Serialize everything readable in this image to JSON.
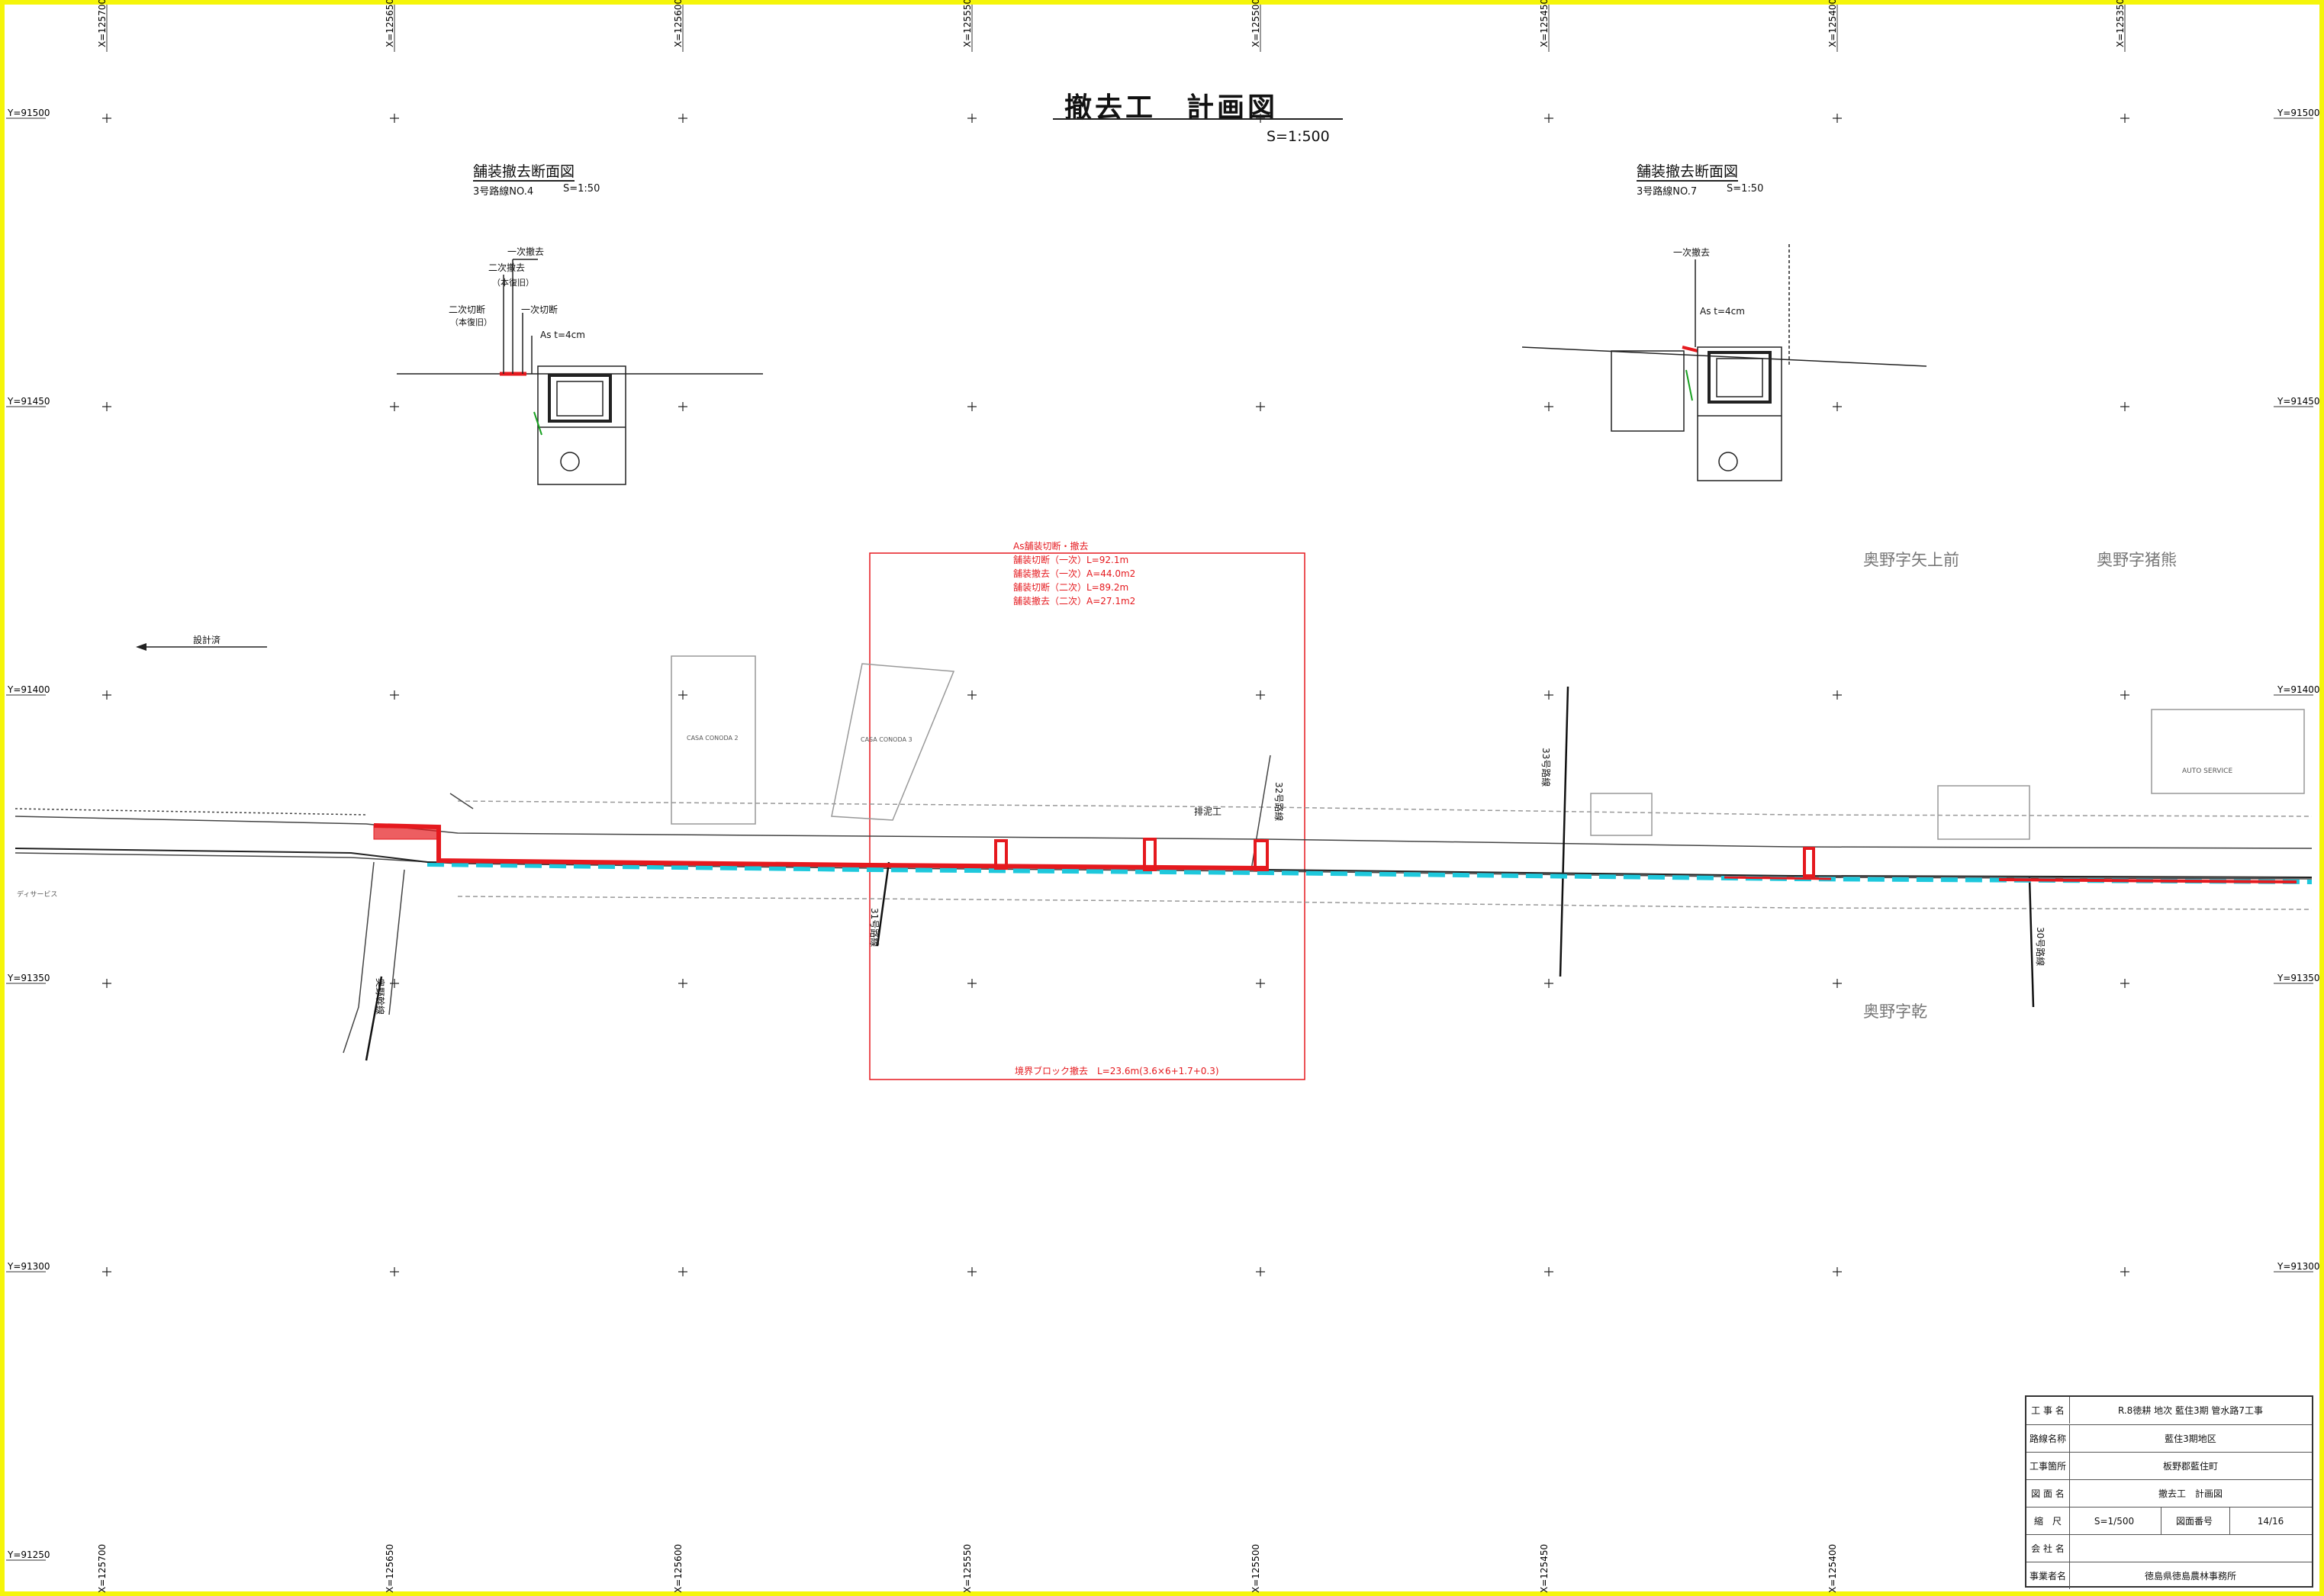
{
  "drawing": {
    "title": "撤去工　計画図",
    "scale": "S=1:500"
  },
  "grid": {
    "x_labels": [
      "X=125700",
      "X=125650",
      "X=125600",
      "X=125550",
      "X=125500",
      "X=125450",
      "X=125400",
      "X=125350"
    ],
    "x_labels_bottom": [
      "X=125700",
      "X=125650",
      "X=125600",
      "X=125550",
      "X=125500",
      "X=125450",
      "X=125400"
    ],
    "y_labels": [
      "Y=91500",
      "Y=91450",
      "Y=91400",
      "Y=91350",
      "Y=91300",
      "Y=91250"
    ],
    "y_labels_right": [
      "Y=91500",
      "Y=91450",
      "Y=91400",
      "Y=91350",
      "Y=91300"
    ]
  },
  "sections": [
    {
      "title": "舗装撤去断面図",
      "sub_left": "3号路線NO.4",
      "sub_right": "S=1:50",
      "labels": [
        "一次撤去",
        "二次撤去",
        "（本復旧）",
        "二次切断",
        "（本復旧）",
        "一次切断",
        "As t=4cm"
      ]
    },
    {
      "title": "舗装撤去断面図",
      "sub_left": "3号路線NO.7",
      "sub_right": "S=1:50",
      "labels": [
        "一次撤去",
        "As t=4cm"
      ]
    }
  ],
  "callout": {
    "lines": [
      "As舗装切断・撤去",
      "舗装切断（一次）L=92.1m",
      "舗装撤去（一次）A=44.0m2",
      "舗装切断（二次）L=89.2m",
      "舗装撤去（二次）A=27.1m2"
    ],
    "bottom_note": "境界ブロック撤去　L=23.6m(3.6×6+1.7+0.3)"
  },
  "plan_labels": {
    "design_done": "設計済",
    "existing_work": "排泥工",
    "route_30": "30号路線",
    "route_32": "32号路線",
    "route_33": "33号路線",
    "route_31": "31号路線",
    "route_main": "奥野幹線",
    "casa_1": "CASA CONODA 2",
    "casa_2": "CASA CONODA 3",
    "auto": "AUTO SERVICE",
    "service": "ディサービス"
  },
  "places": [
    "奥野字矢上前",
    "奥野字猪熊",
    "奥野字乾"
  ],
  "title_block": {
    "rows": [
      {
        "label": "工 事 名",
        "value": "R.8徳耕 地次 藍住3期 管水路7工事"
      },
      {
        "label": "路線名称",
        "value": "藍住3期地区"
      },
      {
        "label": "工事箇所",
        "value": "板野郡藍住町"
      },
      {
        "label": "図 面 名",
        "value": "撤去工　計画図"
      },
      {
        "label": "縮　尺",
        "value": "S=1/500",
        "extra_label": "図面番号",
        "extra_value": "14/16"
      },
      {
        "label": "会 社 名",
        "value": ""
      },
      {
        "label": "事業者名",
        "value": "徳島県徳島農林事務所"
      }
    ]
  },
  "colors": {
    "frame": "#f5f50a",
    "removal": "#e5191e",
    "pipe": "#1ec8dc",
    "ink": "#222222"
  }
}
